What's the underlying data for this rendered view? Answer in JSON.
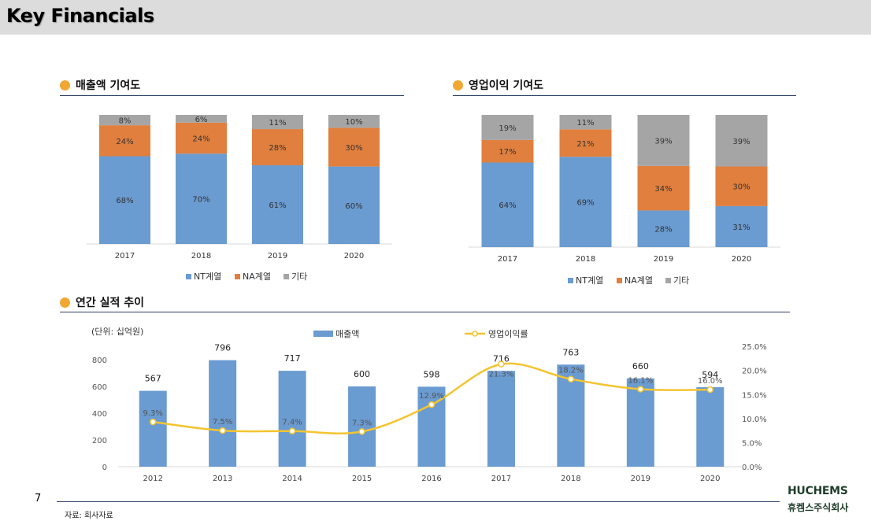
{
  "page": {
    "title": "Key Financials",
    "page_number": "7",
    "source_note": "자료: 회사자료",
    "logo_en": "HUCHEMS",
    "logo_kr": "휴켐스주식회사"
  },
  "sections": {
    "revenue_contribution": "매출액 기여도",
    "op_income_contribution": "영업이익 기여도",
    "annual_trend": "연간 실적 추이"
  },
  "colors": {
    "nt": "#6a9bd1",
    "na": "#e07f3e",
    "other": "#a5a5a5",
    "bar": "#6a9bd1",
    "line": "#f4c430",
    "accent_dot": "#f0a833",
    "rule": "#2d3f66"
  },
  "chart_data": [
    {
      "type": "bar",
      "stacked": true,
      "normalized": true,
      "title": "매출액 기여도",
      "categories": [
        "2017",
        "2018",
        "2019",
        "2020"
      ],
      "series": [
        {
          "name": "NT계열",
          "values": [
            68,
            70,
            61,
            60
          ],
          "labels": [
            "68%",
            "70%",
            "61%",
            "60%"
          ]
        },
        {
          "name": "NA계열",
          "values": [
            24,
            24,
            28,
            30
          ],
          "labels": [
            "24%",
            "24%",
            "28%",
            "30%"
          ]
        },
        {
          "name": "기타",
          "values": [
            8,
            6,
            11,
            10
          ],
          "labels": [
            "8%",
            "6%",
            "11%",
            "10%"
          ]
        }
      ],
      "legend": "bottom"
    },
    {
      "type": "bar",
      "stacked": true,
      "normalized": true,
      "title": "영업이익 기여도",
      "categories": [
        "2017",
        "2018",
        "2019",
        "2020"
      ],
      "series": [
        {
          "name": "NT계열",
          "values": [
            64,
            69,
            28,
            31
          ],
          "labels": [
            "64%",
            "69%",
            "28%",
            "31%"
          ]
        },
        {
          "name": "NA계열",
          "values": [
            17,
            21,
            34,
            30
          ],
          "labels": [
            "17%",
            "21%",
            "34%",
            "30%"
          ]
        },
        {
          "name": "기타",
          "values": [
            19,
            11,
            39,
            39
          ],
          "labels": [
            "19%",
            "11%",
            "39%",
            "39%"
          ]
        }
      ],
      "legend": "bottom"
    },
    {
      "type": "bar",
      "title": "연간 실적 추이",
      "unit_note": "(단위: 십억원)",
      "categories": [
        "2012",
        "2013",
        "2014",
        "2015",
        "2016",
        "2017",
        "2018",
        "2019",
        "2020"
      ],
      "series": [
        {
          "name": "매출액",
          "type": "bar",
          "axis": "left",
          "values": [
            567,
            796,
            717,
            600,
            598,
            716,
            763,
            660,
            594
          ]
        },
        {
          "name": "영업이익률",
          "type": "line",
          "axis": "right",
          "values": [
            9.3,
            7.5,
            7.4,
            7.3,
            12.9,
            21.3,
            18.2,
            16.1,
            16.0
          ],
          "labels": [
            "9.3%",
            "7.5%",
            "7.4%",
            "7.3%",
            "12.9%",
            "21.3%",
            "18.2%",
            "16.1%",
            "16.0%"
          ]
        }
      ],
      "y_left": {
        "ticks": [
          "0",
          "200",
          "400",
          "600",
          "800"
        ],
        "ylim": [
          0,
          1000
        ]
      },
      "y_right": {
        "ticks": [
          "0.0%",
          "5.0%",
          "10.0%",
          "15.0%",
          "20.0%",
          "25.0%"
        ],
        "ylim": [
          0,
          27.8
        ]
      },
      "legend": "top"
    }
  ]
}
